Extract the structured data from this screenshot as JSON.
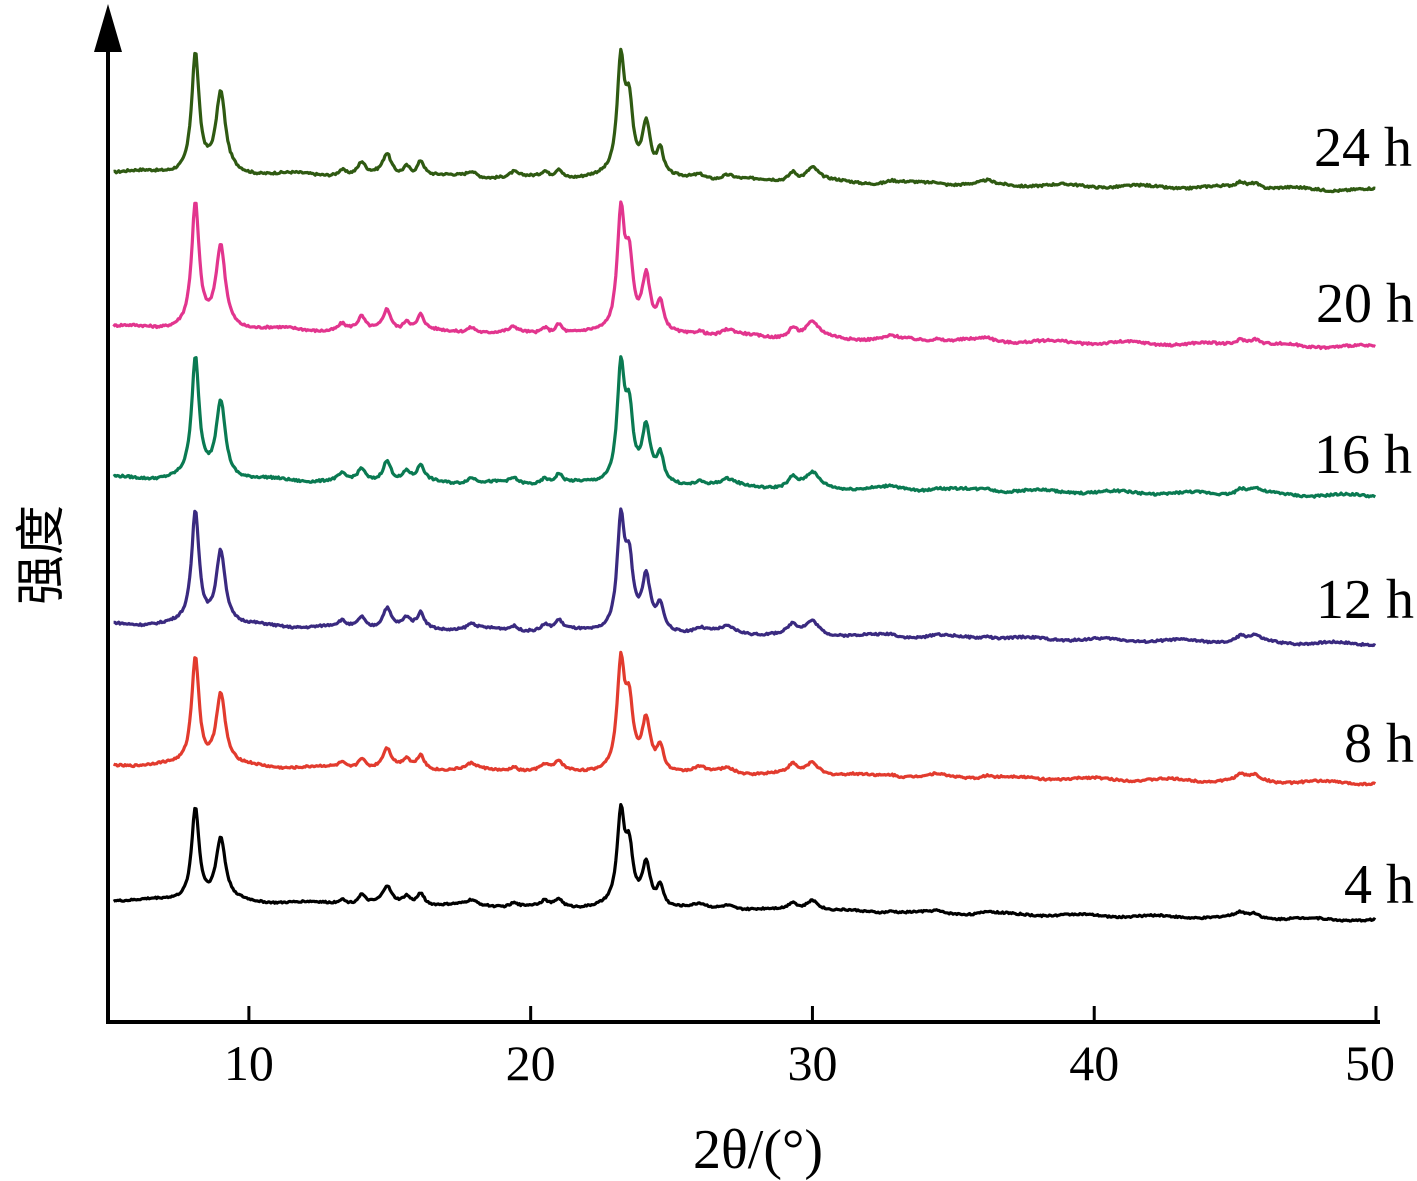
{
  "chart_data": {
    "type": "line",
    "xlabel": "2θ/(°)",
    "ylabel": "强度",
    "xlim": [
      5,
      50
    ],
    "x_ticks": [
      10,
      20,
      30,
      40,
      50
    ],
    "grid": false,
    "legend": "inline-right",
    "peaks": [
      {
        "x": 8.1,
        "h": 1.0,
        "w": 0.16
      },
      {
        "x": 9.0,
        "h": 0.66,
        "w": 0.2
      },
      {
        "x": 13.3,
        "h": 0.05,
        "w": 0.15
      },
      {
        "x": 14.0,
        "h": 0.1,
        "w": 0.15
      },
      {
        "x": 14.9,
        "h": 0.18,
        "w": 0.18
      },
      {
        "x": 15.6,
        "h": 0.08,
        "w": 0.15
      },
      {
        "x": 16.1,
        "h": 0.13,
        "w": 0.15
      },
      {
        "x": 17.9,
        "h": 0.05,
        "w": 0.2
      },
      {
        "x": 19.4,
        "h": 0.04,
        "w": 0.15
      },
      {
        "x": 20.5,
        "h": 0.05,
        "w": 0.15
      },
      {
        "x": 21.0,
        "h": 0.08,
        "w": 0.15
      },
      {
        "x": 23.2,
        "h": 0.95,
        "w": 0.16
      },
      {
        "x": 23.5,
        "h": 0.55,
        "w": 0.16
      },
      {
        "x": 24.1,
        "h": 0.45,
        "w": 0.18
      },
      {
        "x": 24.6,
        "h": 0.22,
        "w": 0.14
      },
      {
        "x": 26.0,
        "h": 0.04,
        "w": 0.25
      },
      {
        "x": 27.0,
        "h": 0.05,
        "w": 0.3
      },
      {
        "x": 29.3,
        "h": 0.08,
        "w": 0.18
      },
      {
        "x": 30.0,
        "h": 0.12,
        "w": 0.28
      },
      {
        "x": 32.8,
        "h": 0.02,
        "w": 0.2
      },
      {
        "x": 34.4,
        "h": 0.02,
        "w": 0.2
      },
      {
        "x": 36.2,
        "h": 0.025,
        "w": 0.2
      },
      {
        "x": 45.2,
        "h": 0.05,
        "w": 0.22
      },
      {
        "x": 45.7,
        "h": 0.05,
        "w": 0.22
      }
    ],
    "series": [
      {
        "name": "24 h",
        "color": "#2f5a12"
      },
      {
        "name": "20 h",
        "color": "#e2358e"
      },
      {
        "name": "16 h",
        "color": "#0a7a52"
      },
      {
        "name": "12 h",
        "color": "#3a2a80"
      },
      {
        "name": "8 h",
        "color": "#e23b2e"
      },
      {
        "name": "4 h",
        "color": "#000000"
      }
    ]
  }
}
